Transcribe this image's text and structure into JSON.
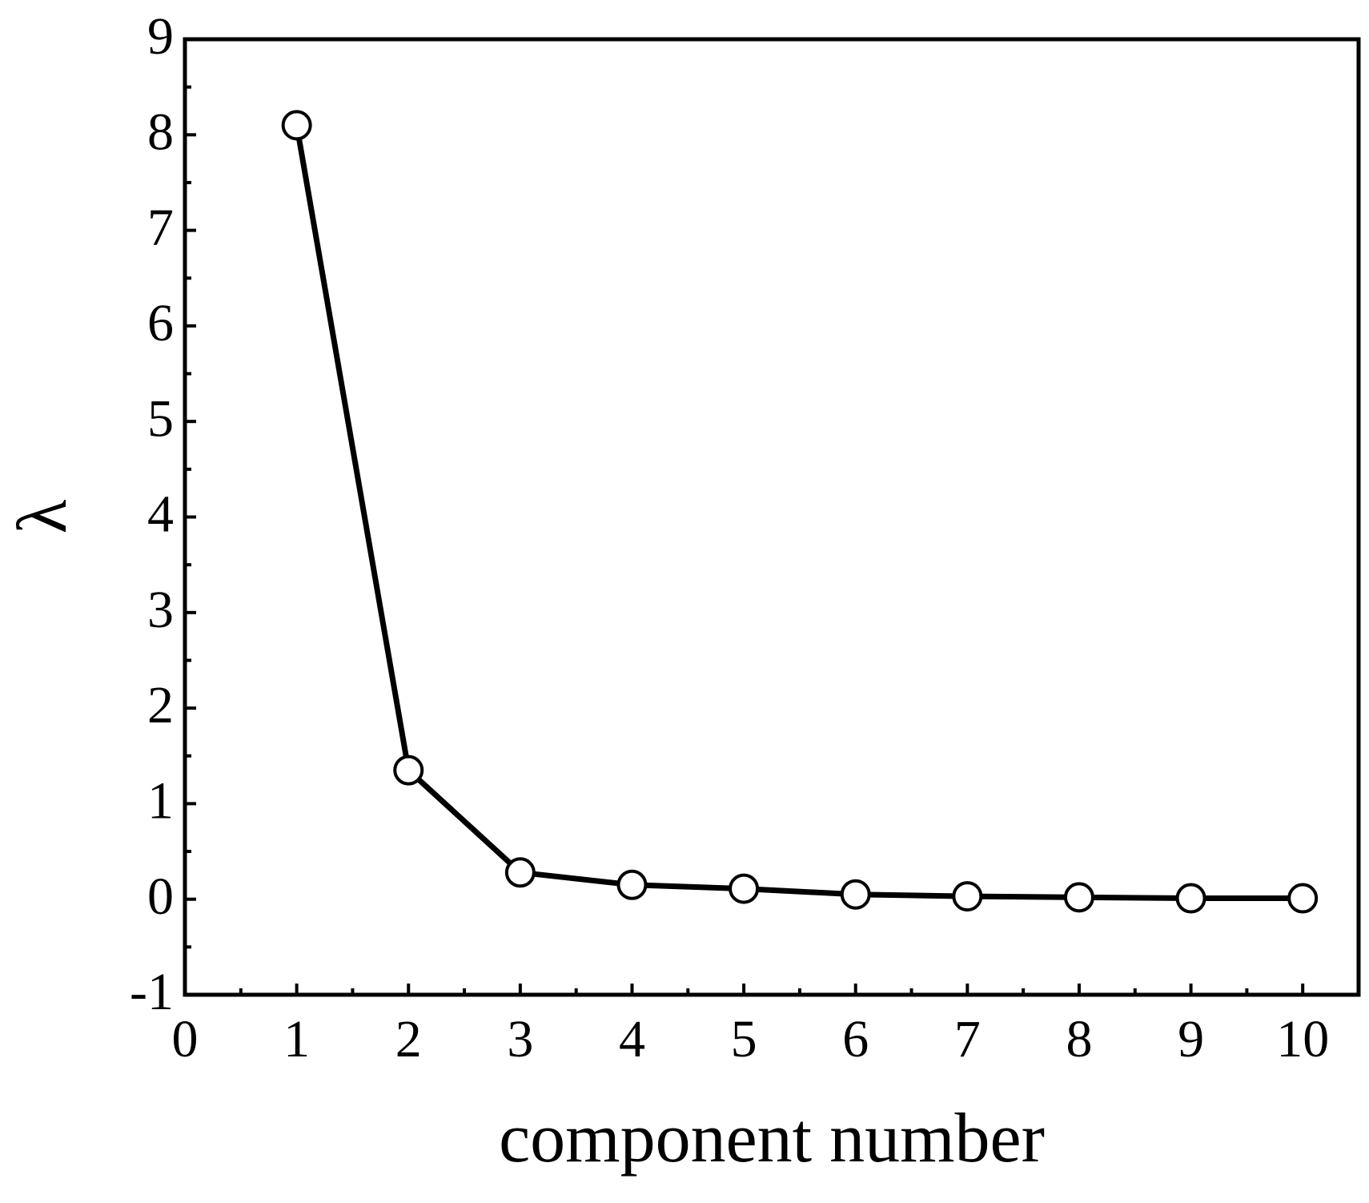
{
  "chart_data": {
    "type": "line",
    "x_label": "component number",
    "y_label": "λ",
    "x": [
      1,
      2,
      3,
      4,
      5,
      6,
      7,
      8,
      9,
      10
    ],
    "series": [
      {
        "color": "#000000",
        "values": [
          8.1,
          1.35,
          0.28,
          0.15,
          0.11,
          0.05,
          0.03,
          0.02,
          0.01,
          0.01
        ]
      }
    ],
    "xlim": [
      0,
      10.5
    ],
    "xticks": [
      0,
      1,
      2,
      3,
      4,
      5,
      6,
      7,
      8,
      9,
      10
    ],
    "ylim": [
      -1,
      9
    ],
    "yticks": [
      -1,
      0,
      1,
      2,
      3,
      4,
      5,
      6,
      7,
      8,
      9
    ]
  }
}
